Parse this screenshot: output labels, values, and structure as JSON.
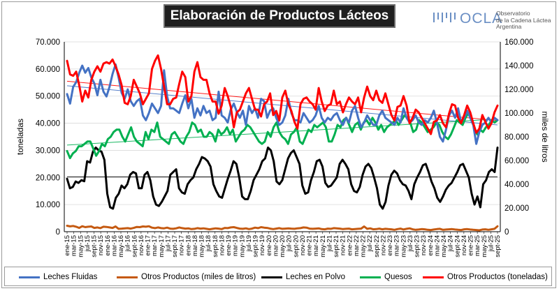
{
  "title": "Elaboración de Productos Lácteos",
  "logo": {
    "name": "OCLA",
    "line1": "Observatorio",
    "line2": "de la Cadena Láctea",
    "line3": "Argentina"
  },
  "chart_data": {
    "type": "line",
    "ylabel_left": "toneladas",
    "ylabel_right": "miles de litros",
    "ylim_left": [
      0,
      70000
    ],
    "ylim_right": [
      0,
      160000
    ],
    "yticks_left": [
      "0",
      "10.000",
      "20.000",
      "30.000",
      "40.000",
      "50.000",
      "60.000",
      "70.000"
    ],
    "yticks_right": [
      "0",
      "20.000",
      "40.000",
      "60.000",
      "80.000",
      "100.000",
      "120.000",
      "140.000",
      "160.000"
    ],
    "x_labels": [
      "ene-15",
      "mar-15",
      "may-15",
      "jul-15",
      "sept-15",
      "nov-15",
      "ene-16",
      "mar-16",
      "may-16",
      "jul-16",
      "sept-16",
      "nov-16",
      "ene-17",
      "mar-17",
      "may-17",
      "jul-17",
      "sept-17",
      "nov-17",
      "ene-18",
      "mar-18",
      "may-18",
      "jul-18",
      "sept-18",
      "nov-18",
      "ene-19",
      "mar-19",
      "may-19",
      "jul-19",
      "sept-19",
      "nov-19",
      "ene-20",
      "mar-20",
      "may-20",
      "jul-20",
      "sept-20",
      "nov-20",
      "ene-21",
      "mar-21",
      "may-21",
      "jul-21",
      "sept-21",
      "nov-21",
      "ene-22",
      "mar-22",
      "may-22",
      "jul-22",
      "sept-22",
      "nov-22",
      "ene-23",
      "mar-23",
      "may-23",
      "jul-23",
      "sept-23",
      "nov-23",
      "ene-24",
      "mar-24",
      "may-24",
      "jul-24",
      "sept-24",
      "nov-24",
      "ene-25",
      "mar-25",
      "may-25",
      "jul-25",
      "sept-25"
    ],
    "series": [
      {
        "name": "Leches Fluidas",
        "axis": "right",
        "color": "#4472c4",
        "trend": [
          123000,
          90000
        ],
        "values": [
          116000,
          108000,
          122000,
          126000,
          134000,
          140000,
          134000,
          138000,
          130000,
          125000,
          115000,
          128000,
          118000,
          114000,
          122000,
          133000,
          141000,
          130000,
          117000,
          112000,
          120000,
          110000,
          106000,
          110000,
          112000,
          98000,
          94000,
          100000,
          108000,
          104000,
          100000,
          106000,
          136000,
          114000,
          104000,
          104000,
          102000,
          100000,
          108000,
          115000,
          104000,
          112000,
          96000,
          104000,
          98000,
          106000,
          100000,
          102000,
          94000,
          96000,
          118000,
          98000,
          96000,
          92000,
          103000,
          108000,
          101000,
          96000,
          102000,
          90000,
          106000,
          100000,
          104000,
          96000,
          112000,
          110000,
          96000,
          102000,
          104000,
          96000,
          90000,
          92000,
          98000,
          112000,
          100000,
          94000,
          94000,
          92000,
          100000,
          96000,
          92000,
          94000,
          98000,
          106000,
          96000,
          92000,
          96000,
          94000,
          98000,
          100000,
          94000,
          90000,
          96000,
          92000,
          102000,
          106000,
          96000,
          88000,
          92000,
          98000,
          94000,
          90000,
          90000,
          98000,
          102000,
          96000,
          94000,
          92000,
          90000,
          96000,
          92000,
          104000,
          96000,
          92000,
          94000,
          98000,
          92000,
          90000,
          94000,
          92000,
          96000,
          102000,
          92000,
          80000,
          76000,
          86000,
          98000,
          102000,
          96000,
          104000,
          92000,
          96000,
          102000,
          96000,
          90000,
          74000,
          84000,
          90000,
          92000,
          96000,
          92000,
          96000,
          94000
        ]
      },
      {
        "name": "Otros Productos (miles de litros)",
        "axis": "right",
        "color": "#c55a11",
        "trend": null,
        "values": [
          5000,
          4500,
          4800,
          4200,
          3200,
          4600,
          3800,
          4200,
          4400,
          3200,
          3600,
          3000,
          4200,
          4000,
          3600,
          3200,
          4400,
          2400,
          2600,
          2800,
          3000,
          2600,
          3200,
          4000,
          3800,
          4400,
          4200,
          4600,
          3400,
          3000,
          3600,
          3000,
          2800,
          3400,
          2600,
          2400,
          2800,
          3600,
          3000,
          2600,
          2800,
          2200,
          2400,
          3000,
          2600,
          2800,
          2400,
          2000,
          2400,
          2800,
          2600,
          2200,
          3200,
          3000,
          3600,
          3800,
          3200,
          2600,
          2400,
          2800,
          2200,
          2600,
          3400,
          3000,
          3800,
          3400,
          3200,
          2600,
          2200,
          2600,
          3000,
          2400,
          2600,
          2800,
          2600,
          2400,
          2800,
          3000,
          3600,
          3400,
          2600,
          2400,
          2600,
          2800,
          2200,
          2000,
          2600,
          2400,
          3000,
          2800,
          2600,
          2200,
          2400,
          2600,
          2000,
          2200,
          2400,
          2600,
          4400,
          2400,
          2800,
          2000,
          2200,
          2600,
          2000,
          2400,
          2200,
          2000,
          1600,
          2200,
          2600,
          1800,
          2400,
          2800,
          2000,
          1600,
          1800,
          2200,
          2000,
          1600,
          1400,
          1800,
          2200,
          2400,
          1600,
          1800,
          2000,
          2200,
          1800,
          1600,
          1400,
          2000,
          2200,
          1800,
          1600,
          1400,
          1200,
          1800,
          2000,
          1600,
          2000,
          2400,
          4600
        ]
      },
      {
        "name": "Leches en Polvo",
        "axis": "left",
        "color": "#000000",
        "trend": [
          20200,
          20200
        ],
        "values": [
          19500,
          16000,
          16500,
          18500,
          18000,
          19000,
          18600,
          26000,
          25500,
          29500,
          31000,
          30000,
          29500,
          26500,
          14000,
          9000,
          8500,
          12500,
          14000,
          17000,
          16000,
          17500,
          21000,
          22000,
          21500,
          16000,
          16000,
          21000,
          22000,
          19000,
          13000,
          10000,
          9500,
          11000,
          13000,
          15000,
          21000,
          22000,
          23000,
          16000,
          14500,
          14000,
          17500,
          19000,
          20000,
          23000,
          25000,
          27500,
          27000,
          26000,
          24000,
          17500,
          15000,
          13000,
          12500,
          16000,
          19500,
          22500,
          26000,
          25000,
          20000,
          13000,
          12000,
          12000,
          15000,
          19000,
          21000,
          23000,
          26000,
          27000,
          31000,
          30000,
          26000,
          18500,
          17500,
          19000,
          23000,
          27000,
          29000,
          30000,
          27500,
          25000,
          17000,
          14000,
          14500,
          19000,
          22000,
          26000,
          26500,
          24000,
          18000,
          16500,
          17000,
          18500,
          20000,
          25000,
          26500,
          25000,
          23000,
          17500,
          15000,
          14500,
          16500,
          21000,
          24000,
          25000,
          23500,
          20000,
          16000,
          10000,
          8500,
          11000,
          17000,
          21000,
          22500,
          21500,
          19000,
          17500,
          17000,
          15000,
          12000,
          17500,
          20000,
          22000,
          24500,
          25000,
          22000,
          18500,
          16000,
          12500,
          11000,
          13000,
          15500,
          17000,
          18000,
          20000,
          22000,
          24500,
          25000,
          22500,
          20000,
          14000,
          10000,
          13000,
          9000,
          17500,
          19000,
          22000,
          23000,
          22000,
          31000
        ]
      },
      {
        "name": "Quesos",
        "axis": "right",
        "color": "#00b050",
        "trend": [
          73000,
          95000
        ],
        "values": [
          68000,
          62000,
          66000,
          68000,
          72000,
          72000,
          74000,
          76000,
          76000,
          70000,
          64000,
          68000,
          74000,
          72000,
          78000,
          80000,
          84000,
          86000,
          86000,
          80000,
          76000,
          82000,
          88000,
          80000,
          76000,
          74000,
          72000,
          84000,
          78000,
          86000,
          84000,
          92000,
          80000,
          78000,
          76000,
          74000,
          82000,
          84000,
          80000,
          76000,
          74000,
          80000,
          84000,
          92000,
          90000,
          84000,
          86000,
          80000,
          80000,
          84000,
          82000,
          76000,
          86000,
          82000,
          84000,
          88000,
          82000,
          86000,
          76000,
          80000,
          84000,
          86000,
          90000,
          88000,
          84000,
          80000,
          76000,
          74000,
          76000,
          84000,
          80000,
          88000,
          92000,
          84000,
          80000,
          78000,
          74000,
          82000,
          84000,
          88000,
          76000,
          74000,
          80000,
          86000,
          84000,
          90000,
          88000,
          90000,
          92000,
          88000,
          76000,
          76000,
          82000,
          90000,
          88000,
          94000,
          96000,
          90000,
          84000,
          90000,
          92000,
          86000,
          92000,
          94000,
          90000,
          96000,
          92000,
          86000,
          90000,
          84000,
          88000,
          90000,
          92000,
          94000,
          90000,
          94000,
          98000,
          96000,
          92000,
          84000,
          86000,
          94000,
          92000,
          88000,
          84000,
          86000,
          88000,
          92000,
          90000,
          84000,
          80000,
          78000,
          82000,
          88000,
          94000,
          92000,
          90000,
          96000,
          100000,
          94000,
          88000,
          82000,
          86000,
          84000,
          88000,
          90000,
          94000,
          92000,
          94000
        ]
      },
      {
        "name": "Otros Productos (toneladas)",
        "axis": "left",
        "color": "#ff0000",
        "trend": [
          55500,
          41000
        ],
        "values": [
          63000,
          58000,
          57500,
          59000,
          54000,
          48000,
          52000,
          49500,
          56000,
          59000,
          61000,
          59000,
          62000,
          62500,
          62000,
          63500,
          61000,
          58000,
          54000,
          47500,
          47000,
          50000,
          56000,
          53500,
          51000,
          47000,
          49000,
          51000,
          60000,
          63000,
          65000,
          60000,
          53500,
          47000,
          47000,
          49000,
          49500,
          54500,
          59000,
          57000,
          48000,
          50000,
          59000,
          62500,
          57000,
          56000,
          56000,
          51000,
          48000,
          48000,
          43500,
          46500,
          53000,
          50000,
          46000,
          38500,
          44000,
          45000,
          48000,
          51000,
          53000,
          49000,
          45000,
          45000,
          42500,
          47000,
          48000,
          51000,
          43000,
          44500,
          41000,
          49500,
          52000,
          47000,
          44500,
          40500,
          38000,
          47000,
          49000,
          49500,
          48000,
          47000,
          45000,
          53000,
          48000,
          44500,
          46500,
          47000,
          52000,
          47000,
          48000,
          44000,
          47000,
          49500,
          48000,
          47000,
          49500,
          44000,
          49500,
          53500,
          50000,
          48500,
          52000,
          48500,
          47500,
          51000,
          47000,
          43000,
          41000,
          46000,
          46500,
          50000,
          46500,
          40000,
          42000,
          45000,
          44000,
          42000,
          40000,
          38000,
          36000,
          40500,
          41000,
          43000,
          40000,
          38500,
          43500,
          47000,
          46500,
          42000,
          40000,
          43000,
          46500,
          44000,
          40000,
          36500,
          38000,
          43000,
          40500,
          38000,
          40000,
          44000,
          46500
        ]
      }
    ]
  }
}
